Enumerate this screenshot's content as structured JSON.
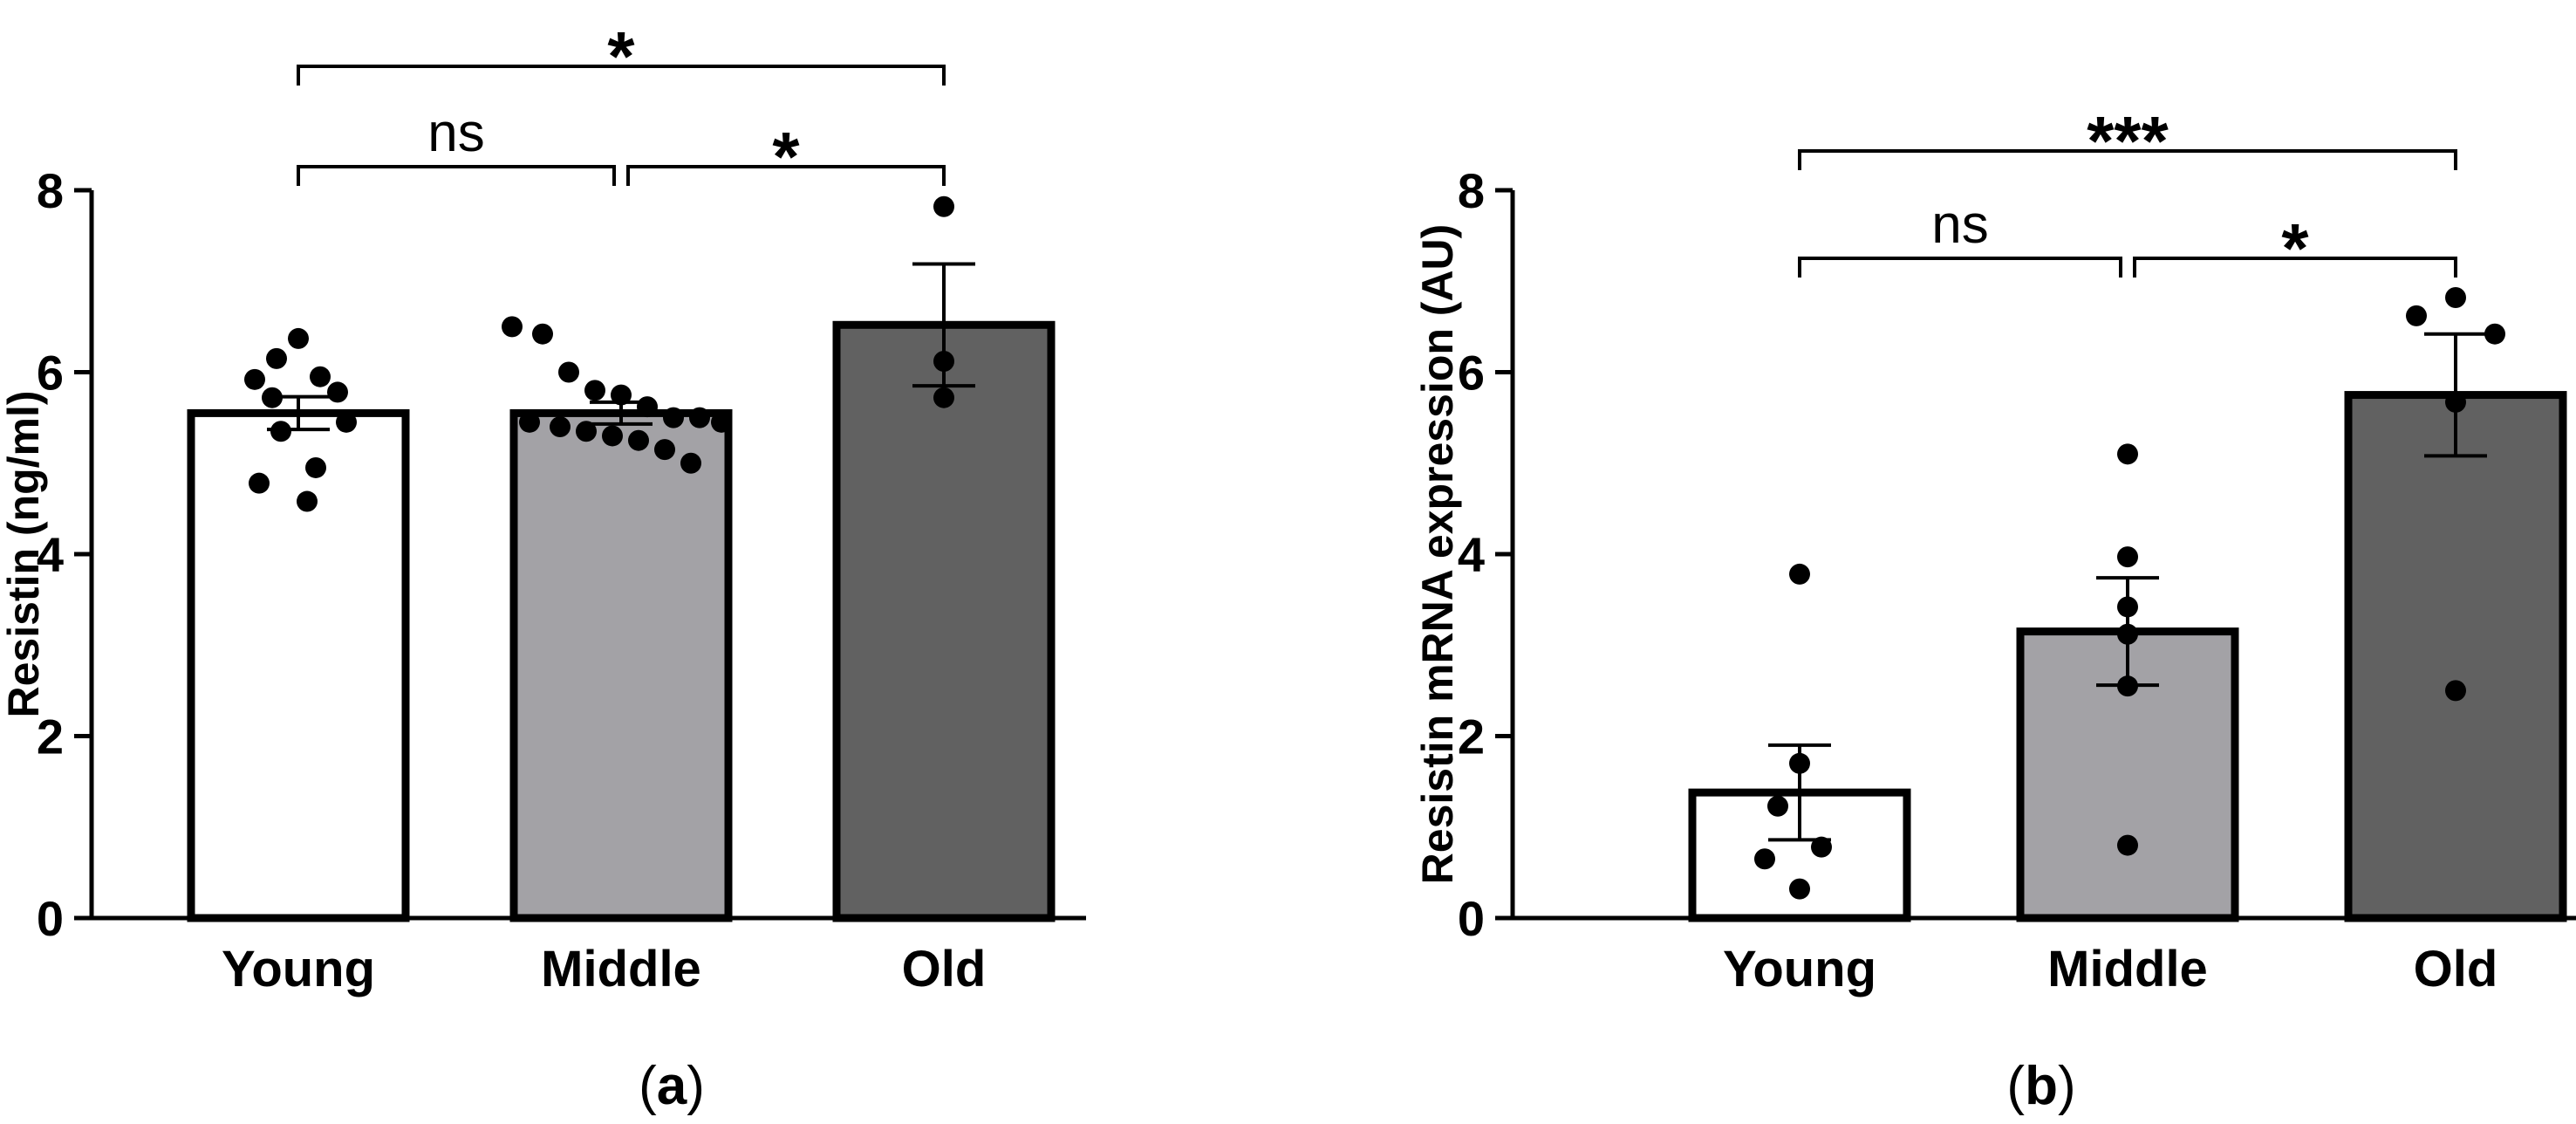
{
  "chart_data": [
    {
      "type": "bar",
      "panel_label": "a",
      "title": "",
      "xlabel": "",
      "ylabel": "Resistin (ng/ml)",
      "ylim": [
        0,
        8
      ],
      "yticks": [
        0,
        2,
        4,
        6,
        8
      ],
      "grid": false,
      "categories": [
        "Young",
        "Middle",
        "Old"
      ],
      "values": [
        5.55,
        5.55,
        6.52
      ],
      "sem": [
        0.18,
        0.12,
        0.67
      ],
      "colors": [
        "#ffffff",
        "#a3a2a6",
        "#616161"
      ],
      "points": [
        [
          6.37,
          6.15,
          5.95,
          5.92,
          5.78,
          5.72,
          5.45,
          5.35,
          4.95,
          4.78,
          4.58
        ],
        [
          6.5,
          6.42,
          6.0,
          5.8,
          5.75,
          5.62,
          5.5,
          5.5,
          5.45,
          5.45,
          5.4,
          5.35,
          5.3,
          5.25,
          5.15,
          5.0
        ],
        [
          7.82,
          6.12,
          5.72
        ]
      ],
      "comparisons": [
        {
          "from": "Young",
          "to": "Middle",
          "label": "ns"
        },
        {
          "from": "Middle",
          "to": "Old",
          "label": "*"
        },
        {
          "from": "Young",
          "to": "Old",
          "label": "*"
        }
      ]
    },
    {
      "type": "bar",
      "panel_label": "b",
      "title": "",
      "xlabel": "",
      "ylabel": "Resistin mRNA expression (AU)",
      "ylim": [
        0,
        8
      ],
      "yticks": [
        0,
        2,
        4,
        6,
        8
      ],
      "grid": false,
      "categories": [
        "Young",
        "Middle",
        "Old"
      ],
      "values": [
        1.38,
        3.15,
        5.75
      ],
      "sem": [
        0.52,
        0.59,
        0.67
      ],
      "colors": [
        "#ffffff",
        "#a3a2a6",
        "#616161"
      ],
      "points": [
        [
          3.78,
          1.7,
          1.23,
          0.78,
          0.65,
          0.32
        ],
        [
          5.1,
          3.97,
          3.42,
          3.12,
          2.55,
          0.8
        ],
        [
          6.82,
          6.62,
          6.42,
          5.67,
          2.5
        ]
      ],
      "comparisons": [
        {
          "from": "Young",
          "to": "Middle",
          "label": "ns"
        },
        {
          "from": "Middle",
          "to": "Old",
          "label": "*"
        },
        {
          "from": "Young",
          "to": "Old",
          "label": "***"
        }
      ]
    }
  ]
}
